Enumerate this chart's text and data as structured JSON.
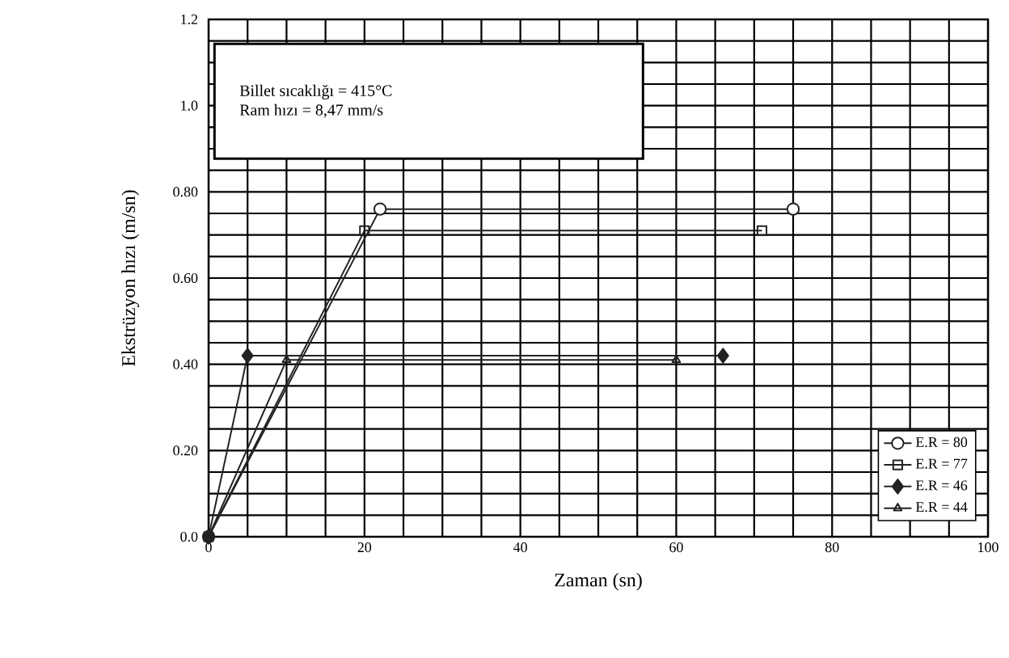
{
  "chart_data": {
    "type": "line",
    "xlabel": "Zaman (sn)",
    "ylabel": "Ekstrüzyon hızı (m/sn)",
    "annotations": [
      "Billet sıcaklığı = 415°C",
      "Ram hızı = 8,47 mm/s"
    ],
    "series": [
      {
        "name": "E.R = 80",
        "color": "#222222",
        "marker": "circle",
        "x": [
          0,
          22,
          75
        ],
        "values": [
          0,
          0.76,
          0.76
        ]
      },
      {
        "name": "E.R = 77",
        "color": "#222222",
        "marker": "square",
        "x": [
          0,
          20,
          71
        ],
        "values": [
          0,
          0.71,
          0.71
        ]
      },
      {
        "name": "E.R = 46",
        "color": "#222222",
        "marker": "diamond",
        "x": [
          0,
          5,
          66
        ],
        "values": [
          0,
          0.42,
          0.42
        ]
      },
      {
        "name": "E.R = 44",
        "color": "#222222",
        "marker": "triangle",
        "x": [
          0,
          10,
          60
        ],
        "values": [
          0,
          0.41,
          0.41
        ]
      }
    ],
    "xlim": [
      0,
      100
    ],
    "ylim": [
      0,
      1.2
    ],
    "xticks": [
      0,
      20,
      40,
      60,
      80,
      100
    ],
    "yticks": [
      {
        "value": 0,
        "label": "0.0"
      },
      {
        "value": 0.2,
        "label": "0.20"
      },
      {
        "value": 0.4,
        "label": "0.40"
      },
      {
        "value": 0.6,
        "label": "0.60"
      },
      {
        "value": 0.8,
        "label": "0.80"
      },
      {
        "value": 1.0,
        "label": "1.0"
      },
      {
        "value": 1.2,
        "label": "1.2"
      }
    ],
    "grid": true,
    "legend": "bottom right",
    "line_style": "solid"
  }
}
